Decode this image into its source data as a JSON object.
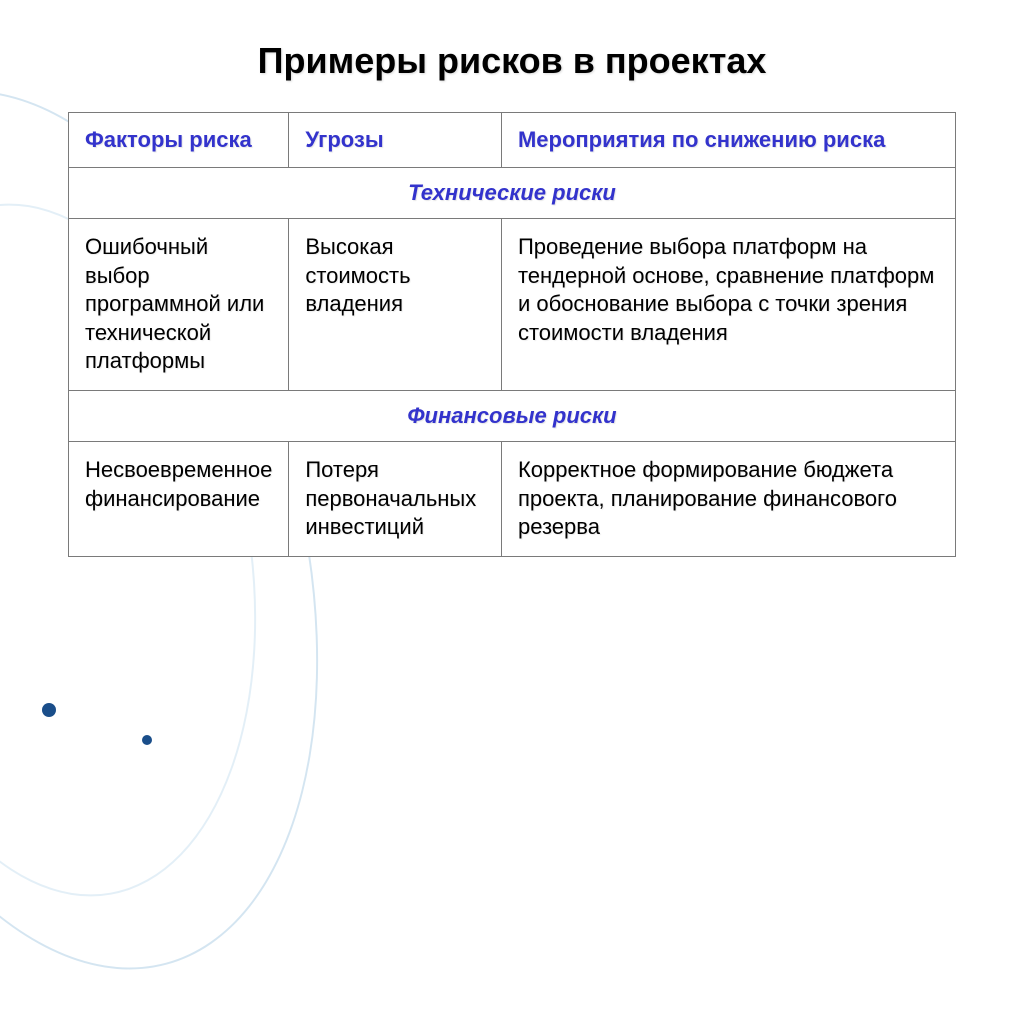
{
  "slide": {
    "title": "Примеры рисков в проектах",
    "title_fontsize": 36,
    "title_color": "#000000",
    "background_color": "#ffffff"
  },
  "table": {
    "type": "table",
    "border_color": "#7a7a7a",
    "header_color": "#3333cc",
    "category_color": "#3333cc",
    "body_color": "#000000",
    "cell_fontsize": 22,
    "columns": [
      {
        "label": "Факторы риска",
        "width_pct": 24
      },
      {
        "label": "Угрозы",
        "width_pct": 24
      },
      {
        "label": "Мероприятия по снижению риска",
        "width_pct": 52
      }
    ],
    "sections": [
      {
        "category": "Технические риски",
        "rows": [
          {
            "factor": "Ошибочный выбор программной или технической платформы",
            "threat": "Высокая стоимость владения",
            "mitigation": "Проведение выбора платформ на тендерной основе, сравнение платформ и обоснование выбора с точки зрения стоимости владения"
          }
        ]
      },
      {
        "category": "Финансовые риски",
        "rows": [
          {
            "factor": "Несвоевременное финансирование",
            "threat": "Потеря первоначальных инвестиций",
            "mitigation": "Корректное формирование бюджета проекта, планирование финансового резерва"
          }
        ]
      }
    ]
  },
  "decoration": {
    "arc_color": "#b8d4e8",
    "dot_color": "#1a4e8a"
  }
}
